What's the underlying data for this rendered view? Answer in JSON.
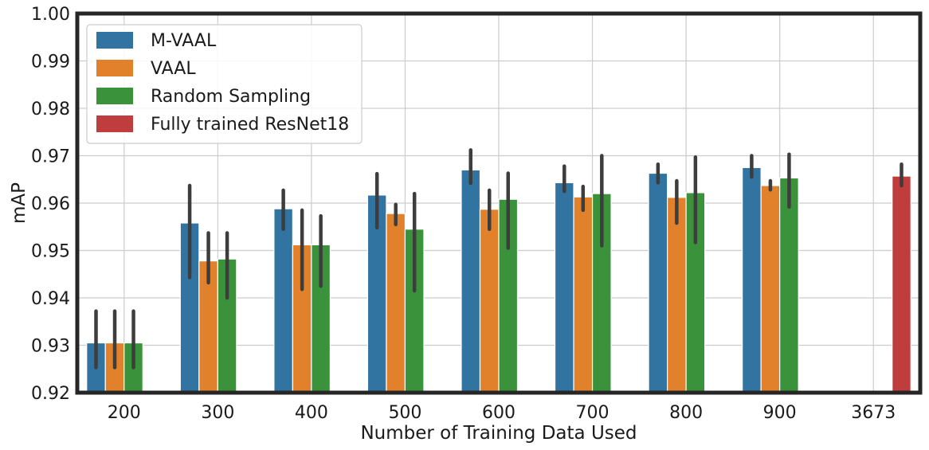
{
  "chart_data": {
    "type": "bar",
    "title": "",
    "xlabel": "Number of Training Data Used",
    "ylabel": "mAP",
    "ylim": [
      0.92,
      1.0
    ],
    "yticks": [
      "0.92",
      "0.93",
      "0.94",
      "0.95",
      "0.96",
      "0.97",
      "0.98",
      "0.99",
      "1.00"
    ],
    "categories": [
      "200",
      "300",
      "400",
      "500",
      "600",
      "700",
      "800",
      "900",
      "3673"
    ],
    "grid": true,
    "legend_position": "top-left",
    "series": [
      {
        "name": "M-VAAL",
        "color": "#3274a1",
        "values": [
          0.9305,
          0.9558,
          0.9588,
          0.9617,
          0.967,
          0.9643,
          0.9663,
          0.9675,
          null
        ],
        "err_low": [
          0.9253,
          0.9443,
          0.9545,
          0.9548,
          0.9642,
          0.9625,
          0.9643,
          0.9655,
          null
        ],
        "err_high": [
          0.9372,
          0.9637,
          0.9627,
          0.9662,
          0.9712,
          0.9678,
          0.9682,
          0.97,
          null
        ]
      },
      {
        "name": "VAAL",
        "color": "#e1812c",
        "values": [
          0.9305,
          0.9478,
          0.9512,
          0.9578,
          0.9587,
          0.9613,
          0.9612,
          0.9637,
          null
        ],
        "err_low": [
          0.9253,
          0.9432,
          0.9418,
          0.9555,
          0.9545,
          0.9585,
          0.9558,
          0.9628,
          null
        ],
        "err_high": [
          0.9372,
          0.9537,
          0.9585,
          0.9597,
          0.9627,
          0.9635,
          0.9647,
          0.9647,
          null
        ]
      },
      {
        "name": "Random Sampling",
        "color": "#3a923a",
        "values": [
          0.9305,
          0.9482,
          0.9512,
          0.9545,
          0.9608,
          0.962,
          0.9622,
          0.9653,
          null
        ],
        "err_low": [
          0.9253,
          0.94,
          0.9425,
          0.9415,
          0.9505,
          0.951,
          0.9517,
          0.9592,
          null
        ],
        "err_high": [
          0.9372,
          0.9537,
          0.9573,
          0.962,
          0.9663,
          0.97,
          0.9697,
          0.9703,
          null
        ]
      },
      {
        "name": "Fully trained ResNet18",
        "color": "#c03d3e",
        "values": [
          null,
          null,
          null,
          null,
          null,
          null,
          null,
          null,
          0.9657
        ],
        "err_low": [
          null,
          null,
          null,
          null,
          null,
          null,
          null,
          null,
          0.9637
        ],
        "err_high": [
          null,
          null,
          null,
          null,
          null,
          null,
          null,
          null,
          0.9682
        ]
      }
    ]
  }
}
